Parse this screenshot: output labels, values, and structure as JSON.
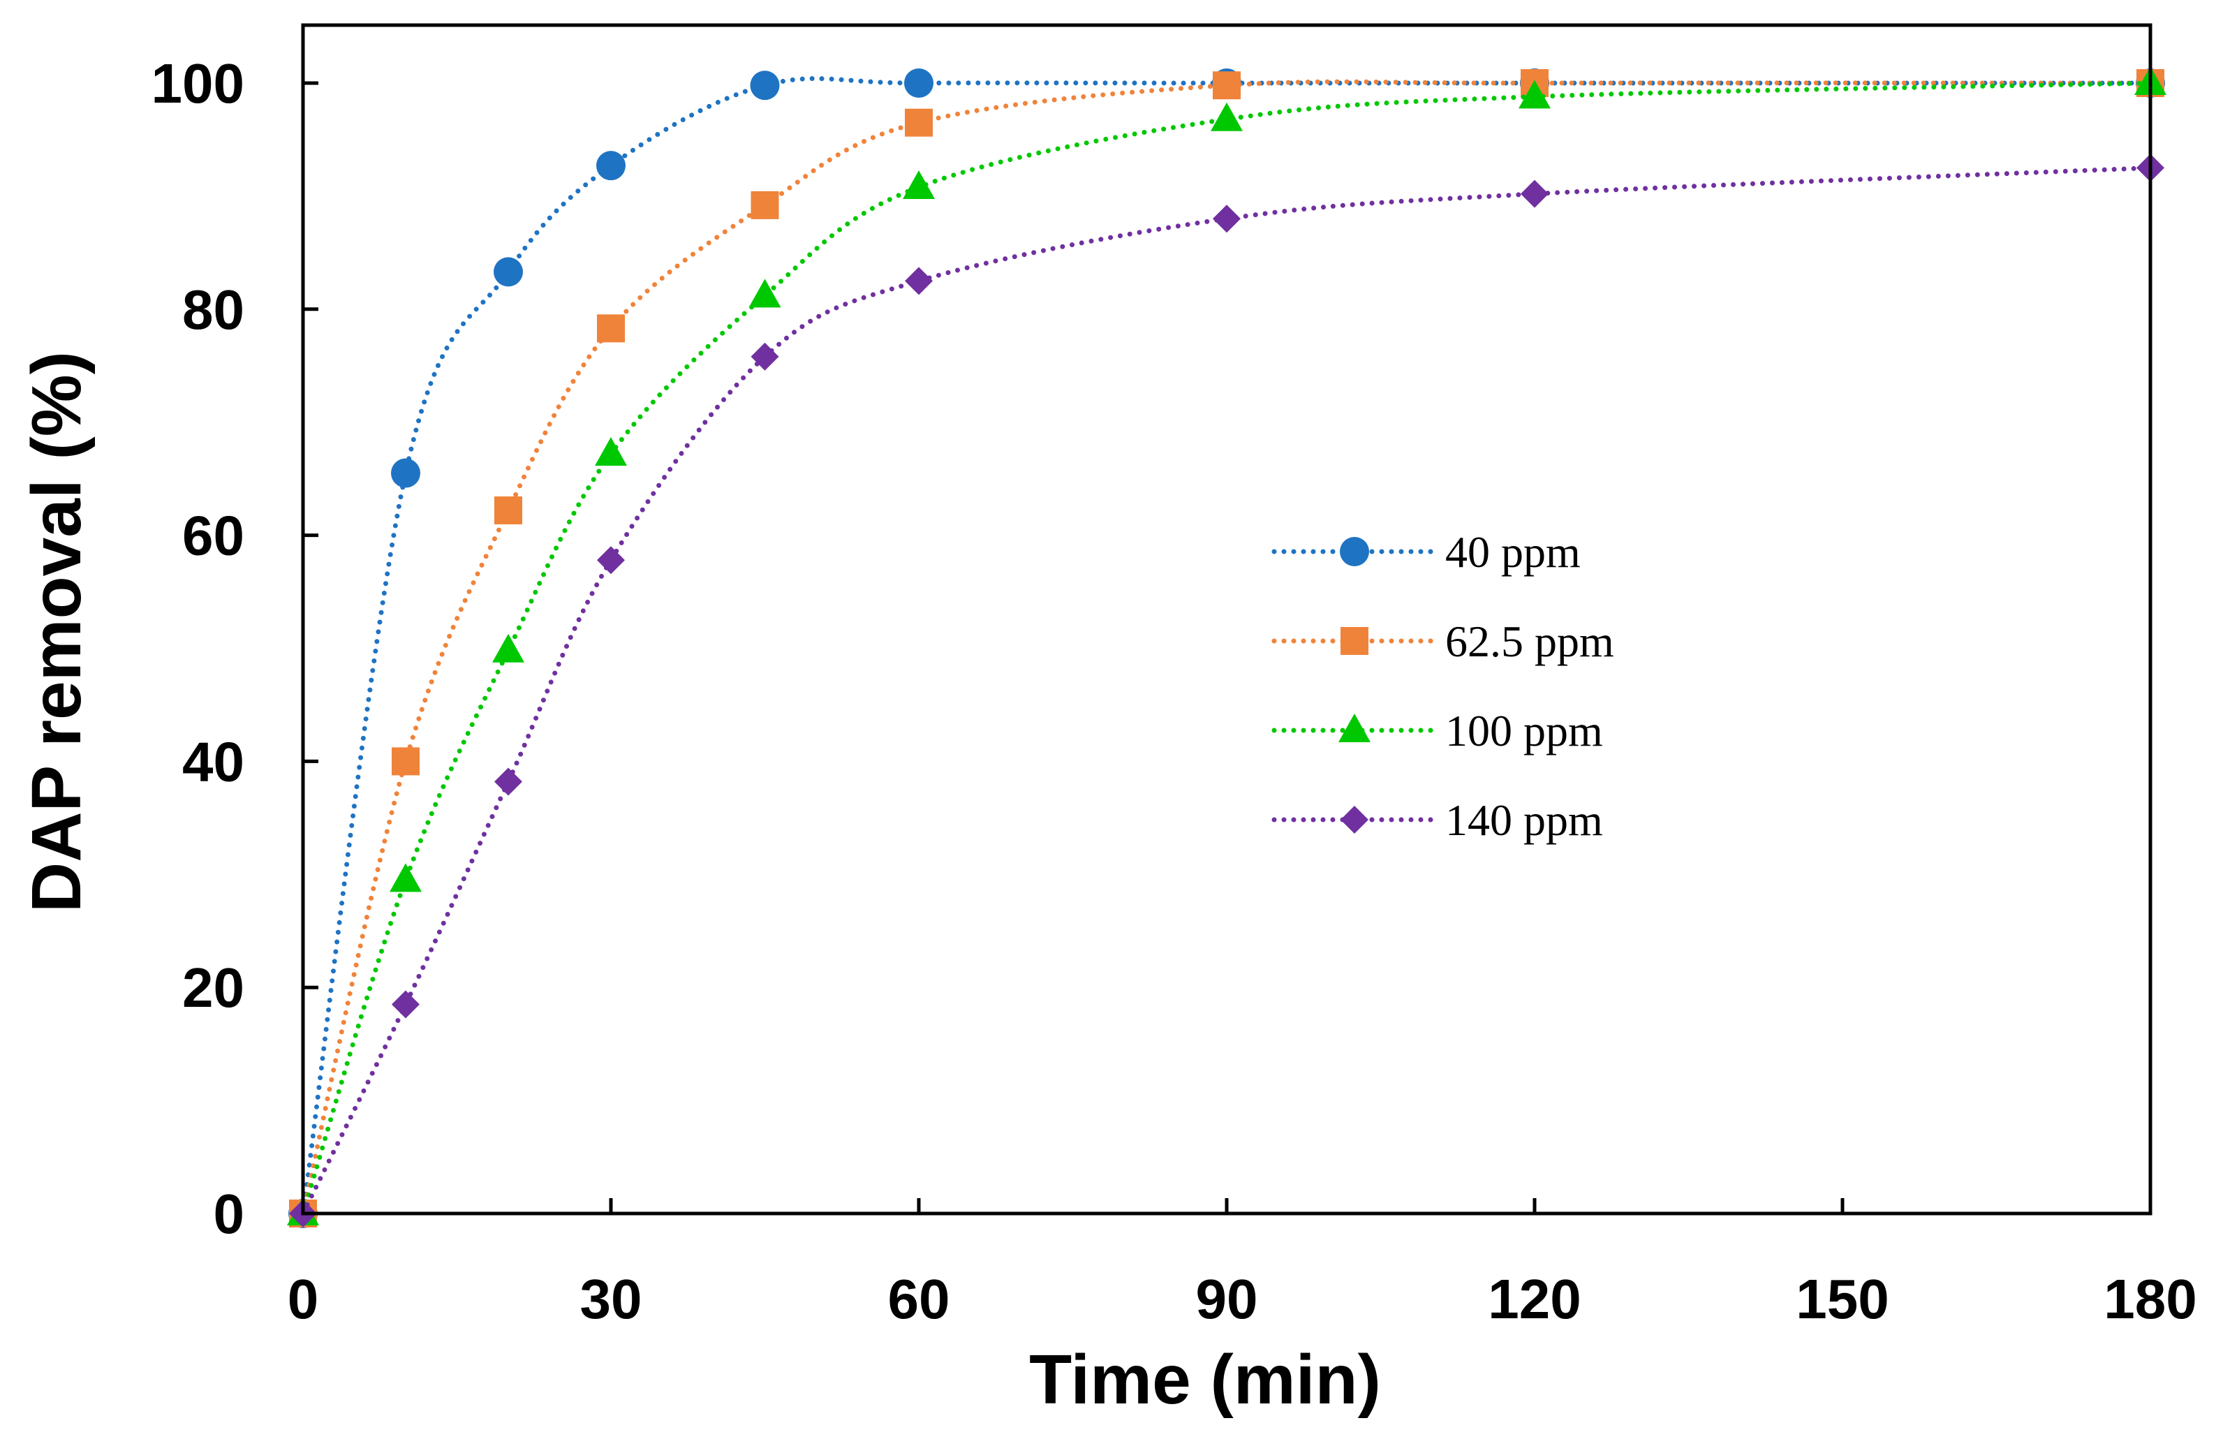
{
  "chart_data": {
    "type": "line",
    "title": "",
    "xlabel": "Time (min)",
    "ylabel": "DAP removal (%)",
    "xlim": [
      0,
      180
    ],
    "ylim": [
      0,
      105
    ],
    "xticks": [
      0,
      30,
      60,
      90,
      120,
      150,
      180
    ],
    "yticks": [
      0,
      20,
      40,
      60,
      80,
      100
    ],
    "xtick_labels": [
      "0",
      "30",
      "60",
      "90",
      "120",
      "150",
      "180"
    ],
    "ytick_labels": [
      "0",
      "20",
      "40",
      "60",
      "80",
      "100"
    ],
    "grid": false,
    "legend_position": "center-right",
    "line_style": "dotted",
    "series": [
      {
        "name": "40 ppm",
        "marker": "circle",
        "color": "#1f73c3",
        "x": [
          0,
          10,
          20,
          30,
          45,
          60,
          90,
          120,
          180
        ],
        "y": [
          0,
          65.5,
          83.3,
          92.7,
          99.8,
          100,
          100,
          100,
          100
        ]
      },
      {
        "name": "62.5 ppm",
        "marker": "square",
        "color": "#f0833a",
        "x": [
          0,
          10,
          20,
          30,
          45,
          60,
          90,
          120,
          180
        ],
        "y": [
          0,
          40,
          62.2,
          78.3,
          89.2,
          96.5,
          99.8,
          100,
          100
        ]
      },
      {
        "name": "100 ppm",
        "marker": "triangle",
        "color": "#00c800",
        "x": [
          0,
          10,
          20,
          30,
          45,
          60,
          90,
          120,
          180
        ],
        "y": [
          0,
          29.5,
          49.8,
          67.2,
          81.2,
          90.8,
          96.8,
          98.8,
          100
        ]
      },
      {
        "name": "140 ppm",
        "marker": "diamond",
        "color": "#7030a0",
        "x": [
          0,
          10,
          20,
          30,
          45,
          60,
          90,
          120,
          180
        ],
        "y": [
          0,
          18.5,
          38.2,
          57.8,
          75.8,
          82.5,
          88,
          90.2,
          92.5
        ]
      }
    ]
  }
}
